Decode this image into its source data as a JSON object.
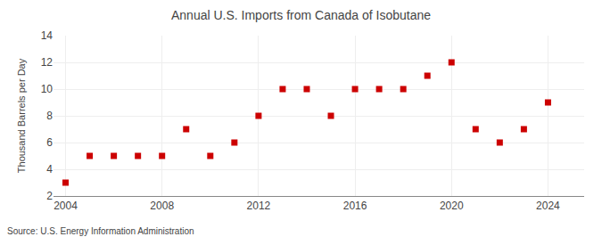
{
  "chart_data": {
    "type": "scatter",
    "title": "Annual U.S. Imports from Canada of Isobutane",
    "ylabel": "Thousand Barrels per Day",
    "annotations": [
      "Source: U.S. Energy Information Administration"
    ],
    "x": [
      2004,
      2005,
      2006,
      2007,
      2008,
      2009,
      2010,
      2011,
      2012,
      2013,
      2014,
      2015,
      2016,
      2017,
      2018,
      2019,
      2020,
      2021,
      2022,
      2023,
      2024
    ],
    "values": [
      3,
      5,
      5,
      5,
      5,
      7,
      5,
      6,
      8,
      10,
      10,
      8,
      10,
      10,
      10,
      11,
      12,
      7,
      6,
      7,
      9
    ],
    "color": "#cc0000",
    "marker": "square",
    "xlim": [
      2003.5,
      2025.5
    ],
    "xticks": [
      2004,
      2008,
      2012,
      2016,
      2020,
      2024
    ],
    "ylim": [
      2,
      14
    ],
    "yticks": [
      2,
      4,
      6,
      8,
      10,
      12,
      14
    ],
    "grid": true
  }
}
